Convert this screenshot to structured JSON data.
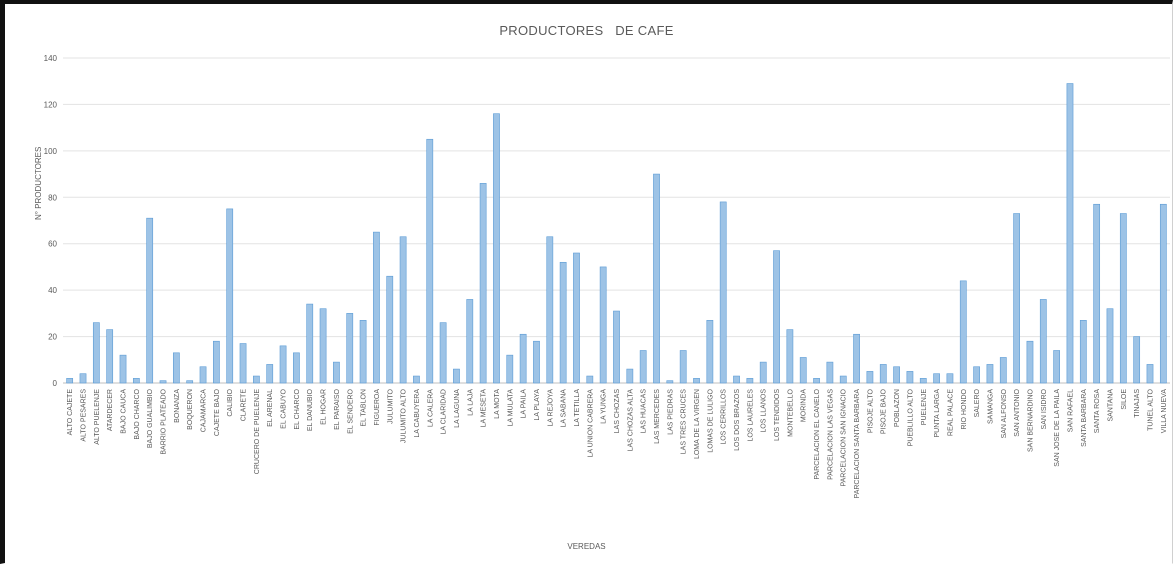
{
  "chart_data": {
    "type": "bar",
    "title": "PRODUCTORES   DE CAFE",
    "xlabel": "VEREDAS",
    "ylabel": "N° PRODUCTORES",
    "ylim": [
      0,
      140
    ],
    "yticks": [
      0,
      20,
      40,
      60,
      80,
      100,
      120,
      140
    ],
    "grid": true,
    "legend": "none",
    "bar_color": "#9dc3e6",
    "bar_edge_color": "#5b9bd5",
    "categories": [
      "ALTO CAJETE",
      "ALTO PESARES",
      "ALTO PUELENJE",
      "ATARDECER",
      "BAJO CAUCA",
      "BAJO CHARCO",
      "BAJO GUALIMBIO",
      "BARRIO PLATEADO",
      "BONANZA",
      "BOQUERON",
      "CAJAMARCA",
      "CAJETE BAJO",
      "CALIBIO",
      "CLARETE",
      "CRUCERO DE PUELENJE",
      "EL ARENAL",
      "EL CABUYO",
      "EL CHARCO",
      "EL DANUBIO",
      "EL HOGAR",
      "EL PARAISO",
      "EL SENDERO",
      "EL TABLON",
      "FIGUEROA",
      "JULUMITO",
      "JULUMITO ALTO",
      "LA CABUYERA",
      "LA CALERA",
      "LA CLARIDAD",
      "LA LAGUNA",
      "LA LAJA",
      "LA MESETA",
      "LA MOTA",
      "LA MULATA",
      "LA PAILA",
      "LA PLAYA",
      "LA REJOYA",
      "LA SABANA",
      "LA TETILLA",
      "LA UNION CABRERA",
      "LA YUNGA",
      "LAS CHOZAS",
      "LAS CHOZAS ALTA",
      "LAS HUACAS",
      "LAS MERCEDES",
      "LAS PIEDRAS",
      "LAS TRES CRUCES",
      "LOMA DE LA VIRGEN",
      "LOMAS DE LULIGO",
      "LOS CERRILLOS",
      "LOS DOS BRAZOS",
      "LOS LAURELES",
      "LOS LLANOS",
      "LOS TENDIDOS",
      "MONTEBELLO",
      "MORINDA",
      "PARCELACION EL CANELO",
      "PARCELACION LAS VEGAS",
      "PARCELACION SAN IGNACIO",
      "PARCELACION SANTA BARBARA",
      "PISOJE ALTO",
      "PISOJE BAJO",
      "POBLAZON",
      "PUEBLILLO ALTO",
      "PUELENJE",
      "PUNTA LARGA",
      "REAL PALACE",
      "RIO HONDO",
      "SALERO",
      "SAMANGA",
      "SAN ALFONSO",
      "SAN ANTONIO",
      "SAN BERNARDINO",
      "SAN ISIDRO",
      "SAN JOSE DE LA PAILA",
      "SAN RAFAEL",
      "SANTA BARBARA",
      "SANTA ROSA",
      "SANTANA",
      "SILOE",
      "TINAJAS",
      "TUNEL ALTO",
      "VILLA NUEVA"
    ],
    "values": [
      2,
      4,
      26,
      23,
      12,
      2,
      71,
      1,
      13,
      1,
      7,
      18,
      75,
      17,
      3,
      8,
      16,
      13,
      34,
      32,
      9,
      30,
      27,
      65,
      46,
      63,
      3,
      105,
      26,
      6,
      36,
      86,
      116,
      12,
      21,
      18,
      63,
      52,
      56,
      3,
      50,
      31,
      6,
      14,
      90,
      1,
      14,
      2,
      27,
      78,
      3,
      2,
      9,
      57,
      23,
      11,
      2,
      9,
      3,
      21,
      5,
      8,
      7,
      5,
      2,
      4,
      4,
      44,
      7,
      8,
      11,
      73,
      18,
      36,
      14,
      129,
      27,
      77,
      32,
      73,
      20,
      8,
      77
    ]
  }
}
